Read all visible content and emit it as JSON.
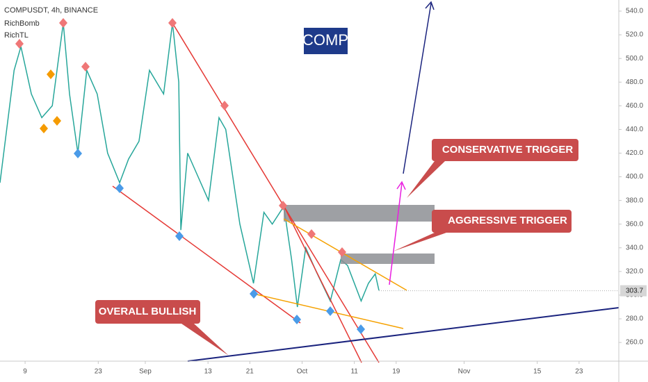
{
  "chart_data": {
    "type": "line",
    "title": "COMPUSDT, 4h, BINANCE",
    "indicators": [
      "RichBomb",
      "RichTL"
    ],
    "symbol_badge": "COMP",
    "annotations": [
      "CONSERVATIVE TRIGGER",
      "AGGRESSIVE TRIGGER",
      "OVERALL BULLISH"
    ],
    "x": [
      4.2,
      6.9,
      8.2,
      10.2,
      12.2,
      14.2,
      16.3,
      17.5,
      19.1,
      20.8,
      22.8,
      24.8,
      27.1,
      28.8,
      30.8,
      32.8,
      35.5,
      37.2,
      38.4,
      38.8,
      40.1,
      42.1,
      44.1,
      46.1,
      47.4,
      50.1,
      52.7,
      54.7,
      56.3,
      58.5,
      60.0,
      61.1,
      62.7,
      64.7,
      67.4,
      69.4,
      70.7,
      73.3,
      74.7,
      76.0,
      76.7
    ],
    "values": [
      395,
      490,
      510,
      470,
      450,
      460,
      530,
      470,
      420,
      490,
      470,
      420,
      395,
      415,
      430,
      490,
      470,
      530,
      480,
      355,
      420,
      400,
      380,
      450,
      440,
      360,
      310,
      370,
      360,
      375,
      330,
      290,
      340,
      320,
      295,
      330,
      325,
      295,
      310,
      318,
      304
    ],
    "color": "#26a69a",
    "last_price": 303.7,
    "xlim": [
      4.2,
      122.6
    ],
    "ylim": [
      244.2,
      549.4
    ],
    "xticks": [
      {
        "value": 9,
        "label": "9"
      },
      {
        "value": 23,
        "label": "23"
      },
      {
        "value": 32,
        "label": "Sep"
      },
      {
        "value": 44,
        "label": "13"
      },
      {
        "value": 52,
        "label": "21"
      },
      {
        "value": 62,
        "label": "Oct"
      },
      {
        "value": 72,
        "label": "11"
      },
      {
        "value": 80,
        "label": "19"
      },
      {
        "value": 93,
        "label": "Nov"
      },
      {
        "value": 107,
        "label": "15"
      },
      {
        "value": 115,
        "label": "23"
      }
    ],
    "yticks": [
      {
        "value": 260,
        "label": "260.0"
      },
      {
        "value": 280,
        "label": "280.0"
      },
      {
        "value": 300,
        "label": "300.0"
      },
      {
        "value": 320,
        "label": "320.0"
      },
      {
        "value": 340,
        "label": "340.0"
      },
      {
        "value": 360,
        "label": "360.0"
      },
      {
        "value": 380,
        "label": "380.0"
      },
      {
        "value": 400,
        "label": "400.0"
      },
      {
        "value": 420,
        "label": "420.0"
      },
      {
        "value": 440,
        "label": "440.0"
      },
      {
        "value": 460,
        "label": "460.0"
      },
      {
        "value": 480,
        "label": "480.0"
      },
      {
        "value": 500,
        "label": "500.0"
      },
      {
        "value": 520,
        "label": "520.0"
      },
      {
        "value": 540,
        "label": "540.0"
      }
    ],
    "grid": false
  }
}
